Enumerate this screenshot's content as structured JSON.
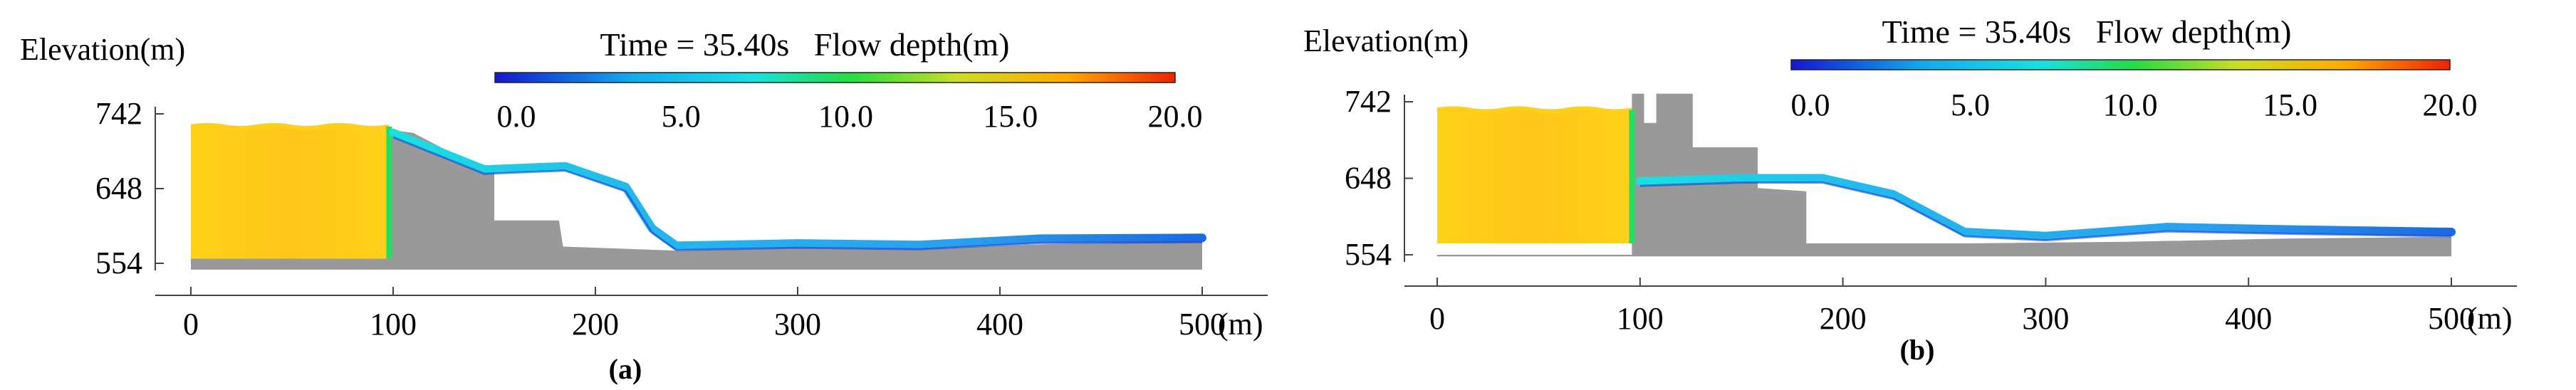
{
  "chart_data": [
    {
      "type": "area",
      "panel_label": "(a)",
      "ylabel": "Elevation(m)",
      "yticks": [
        742,
        648,
        554
      ],
      "xticks": [
        "0",
        "100",
        "200",
        "300",
        "400",
        "500"
      ],
      "x_unit": "(m)",
      "xlim": [
        0,
        500
      ],
      "ylim": [
        554,
        742
      ],
      "colorbar": {
        "title": "Time = 35.40s   Flow depth(m)",
        "ticks": [
          "0.0",
          "5.0",
          "10.0",
          "15.0",
          "20.0"
        ],
        "range": [
          0,
          20
        ],
        "colors": [
          "#1515d0",
          "#11aaee",
          "#19e0e0",
          "#22dd44",
          "#ccdd22",
          "#ffaa00",
          "#ee2200"
        ]
      },
      "terrain": [
        {
          "x": 0,
          "y": 560
        },
        {
          "x": 98,
          "y": 560
        },
        {
          "x": 98,
          "y": 722
        },
        {
          "x": 110,
          "y": 718
        },
        {
          "x": 125,
          "y": 698
        },
        {
          "x": 140,
          "y": 676
        },
        {
          "x": 150,
          "y": 672
        },
        {
          "x": 150,
          "y": 608
        },
        {
          "x": 182,
          "y": 608
        },
        {
          "x": 184,
          "y": 575
        },
        {
          "x": 240,
          "y": 570
        },
        {
          "x": 300,
          "y": 574
        },
        {
          "x": 360,
          "y": 572
        },
        {
          "x": 420,
          "y": 578
        },
        {
          "x": 500,
          "y": 582
        },
        {
          "x": 500,
          "y": 546
        },
        {
          "x": 0,
          "y": 546
        }
      ],
      "reservoir": {
        "x_start": 0,
        "x_end": 98,
        "bottom": 560,
        "top": 726,
        "depth_m": 16
      },
      "flow": [
        {
          "x": 100,
          "y": 718
        },
        {
          "x": 145,
          "y": 672
        },
        {
          "x": 185,
          "y": 676
        },
        {
          "x": 215,
          "y": 650
        },
        {
          "x": 228,
          "y": 598
        },
        {
          "x": 240,
          "y": 576
        },
        {
          "x": 300,
          "y": 579
        },
        {
          "x": 360,
          "y": 577
        },
        {
          "x": 420,
          "y": 585
        },
        {
          "x": 500,
          "y": 586
        }
      ]
    },
    {
      "type": "area",
      "panel_label": "(b)",
      "ylabel": "Elevation(m)",
      "yticks": [
        742,
        648,
        554
      ],
      "xticks": [
        "0",
        "100",
        "200",
        "300",
        "400",
        "500"
      ],
      "x_unit": "(m)",
      "xlim": [
        0,
        500
      ],
      "ylim": [
        554,
        742
      ],
      "colorbar": {
        "title": "Time = 35.40s   Flow depth(m)",
        "ticks": [
          "0.0",
          "5.0",
          "10.0",
          "15.0",
          "20.0"
        ],
        "range": [
          0,
          20
        ],
        "colors": [
          "#1515d0",
          "#11aaee",
          "#19e0e0",
          "#22dd44",
          "#ccdd22",
          "#ffaa00",
          "#ee2200"
        ]
      },
      "terrain": [
        {
          "x": 0,
          "y": 554
        },
        {
          "x": 96,
          "y": 554
        },
        {
          "x": 96,
          "y": 752
        },
        {
          "x": 102,
          "y": 752
        },
        {
          "x": 102,
          "y": 716
        },
        {
          "x": 108,
          "y": 716
        },
        {
          "x": 108,
          "y": 752
        },
        {
          "x": 126,
          "y": 752
        },
        {
          "x": 126,
          "y": 686
        },
        {
          "x": 158,
          "y": 686
        },
        {
          "x": 158,
          "y": 636
        },
        {
          "x": 182,
          "y": 632
        },
        {
          "x": 182,
          "y": 568
        },
        {
          "x": 260,
          "y": 568
        },
        {
          "x": 340,
          "y": 570
        },
        {
          "x": 420,
          "y": 574
        },
        {
          "x": 500,
          "y": 576
        },
        {
          "x": 500,
          "y": 552
        },
        {
          "x": 0,
          "y": 552
        }
      ],
      "reservoir": {
        "x_start": 0,
        "x_end": 96,
        "bottom": 568,
        "top": 732,
        "depth_m": 16
      },
      "flow": [
        {
          "x": 100,
          "y": 644
        },
        {
          "x": 150,
          "y": 648
        },
        {
          "x": 190,
          "y": 648
        },
        {
          "x": 225,
          "y": 628
        },
        {
          "x": 260,
          "y": 582
        },
        {
          "x": 300,
          "y": 577
        },
        {
          "x": 360,
          "y": 588
        },
        {
          "x": 420,
          "y": 585
        },
        {
          "x": 500,
          "y": 582
        }
      ]
    }
  ]
}
